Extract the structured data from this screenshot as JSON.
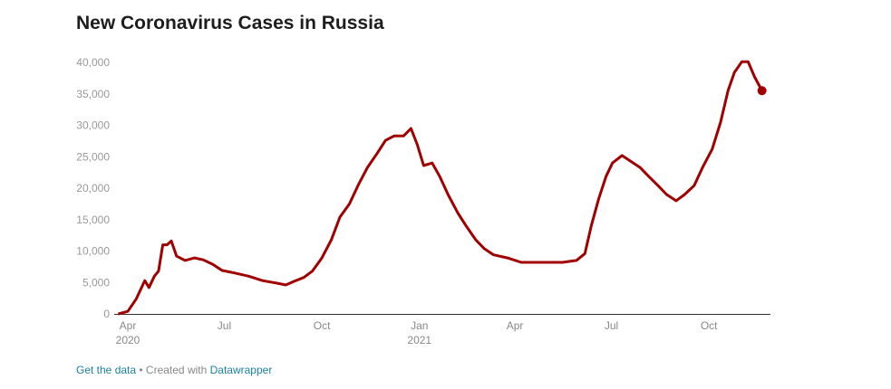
{
  "chart_data": {
    "type": "line",
    "title": "New Coronavirus Cases in Russia",
    "xlabel": "",
    "ylabel": "",
    "ylim": [
      0,
      40000
    ],
    "yticks": [
      0,
      5000,
      10000,
      15000,
      20000,
      25000,
      30000,
      35000,
      40000
    ],
    "ytick_labels": [
      "0",
      "5,000",
      "10,000",
      "15,000",
      "20,000",
      "25,000",
      "30,000",
      "35,000",
      "40,000"
    ],
    "xticks": [
      {
        "date": "2020-04-01",
        "label": "Apr",
        "sub": "2020"
      },
      {
        "date": "2020-07-01",
        "label": "Jul",
        "sub": ""
      },
      {
        "date": "2020-10-01",
        "label": "Oct",
        "sub": ""
      },
      {
        "date": "2021-01-01",
        "label": "Jan",
        "sub": "2021"
      },
      {
        "date": "2021-04-01",
        "label": "Apr",
        "sub": ""
      },
      {
        "date": "2021-07-01",
        "label": "Jul",
        "sub": ""
      },
      {
        "date": "2021-10-01",
        "label": "Oct",
        "sub": ""
      }
    ],
    "grid": false,
    "line_color": "#a00000",
    "series": [
      {
        "points": [
          [
            "2020-03-23",
            0
          ],
          [
            "2020-04-01",
            400
          ],
          [
            "2020-04-09",
            2400
          ],
          [
            "2020-04-17",
            5300
          ],
          [
            "2020-04-21",
            4200
          ],
          [
            "2020-04-26",
            6000
          ],
          [
            "2020-04-30",
            6800
          ],
          [
            "2020-05-04",
            11000
          ],
          [
            "2020-05-08",
            11000
          ],
          [
            "2020-05-12",
            11600
          ],
          [
            "2020-05-17",
            9200
          ],
          [
            "2020-05-25",
            8500
          ],
          [
            "2020-06-03",
            8900
          ],
          [
            "2020-06-11",
            8600
          ],
          [
            "2020-06-20",
            7900
          ],
          [
            "2020-06-29",
            6900
          ],
          [
            "2020-07-11",
            6500
          ],
          [
            "2020-07-24",
            6000
          ],
          [
            "2020-08-06",
            5300
          ],
          [
            "2020-08-19",
            4900
          ],
          [
            "2020-08-28",
            4600
          ],
          [
            "2020-09-05",
            5200
          ],
          [
            "2020-09-14",
            5800
          ],
          [
            "2020-09-22",
            6800
          ],
          [
            "2020-10-01",
            8900
          ],
          [
            "2020-10-10",
            11800
          ],
          [
            "2020-10-18",
            15400
          ],
          [
            "2020-10-27",
            17500
          ],
          [
            "2020-11-04",
            20400
          ],
          [
            "2020-11-13",
            23300
          ],
          [
            "2020-11-22",
            25500
          ],
          [
            "2020-11-30",
            27600
          ],
          [
            "2020-12-08",
            28300
          ],
          [
            "2020-12-17",
            28300
          ],
          [
            "2020-12-24",
            29500
          ],
          [
            "2020-12-30",
            26900
          ],
          [
            "2021-01-05",
            23600
          ],
          [
            "2021-01-13",
            24000
          ],
          [
            "2021-01-20",
            21900
          ],
          [
            "2021-01-28",
            19000
          ],
          [
            "2021-02-06",
            16100
          ],
          [
            "2021-02-14",
            14000
          ],
          [
            "2021-02-23",
            11800
          ],
          [
            "2021-03-03",
            10400
          ],
          [
            "2021-03-12",
            9400
          ],
          [
            "2021-03-25",
            8900
          ],
          [
            "2021-04-07",
            8200
          ],
          [
            "2021-04-20",
            8200
          ],
          [
            "2021-05-03",
            8200
          ],
          [
            "2021-05-16",
            8200
          ],
          [
            "2021-05-29",
            8500
          ],
          [
            "2021-06-06",
            9600
          ],
          [
            "2021-06-12",
            14000
          ],
          [
            "2021-06-19",
            18300
          ],
          [
            "2021-06-26",
            21900
          ],
          [
            "2021-07-02",
            24000
          ],
          [
            "2021-07-11",
            25200
          ],
          [
            "2021-07-19",
            24300
          ],
          [
            "2021-07-28",
            23300
          ],
          [
            "2021-08-05",
            21900
          ],
          [
            "2021-08-14",
            20400
          ],
          [
            "2021-08-22",
            19000
          ],
          [
            "2021-08-31",
            18000
          ],
          [
            "2021-09-08",
            19000
          ],
          [
            "2021-09-17",
            20400
          ],
          [
            "2021-09-25",
            23300
          ],
          [
            "2021-10-04",
            26200
          ],
          [
            "2021-10-12",
            30500
          ],
          [
            "2021-10-19",
            35500
          ],
          [
            "2021-10-25",
            38400
          ],
          [
            "2021-11-01",
            40100
          ],
          [
            "2021-11-07",
            40100
          ],
          [
            "2021-11-13",
            37700
          ],
          [
            "2021-11-20",
            35500
          ]
        ]
      }
    ]
  },
  "footer": {
    "get_data": "Get the data",
    "separator": " • Created with ",
    "datawrapper": "Datawrapper"
  }
}
